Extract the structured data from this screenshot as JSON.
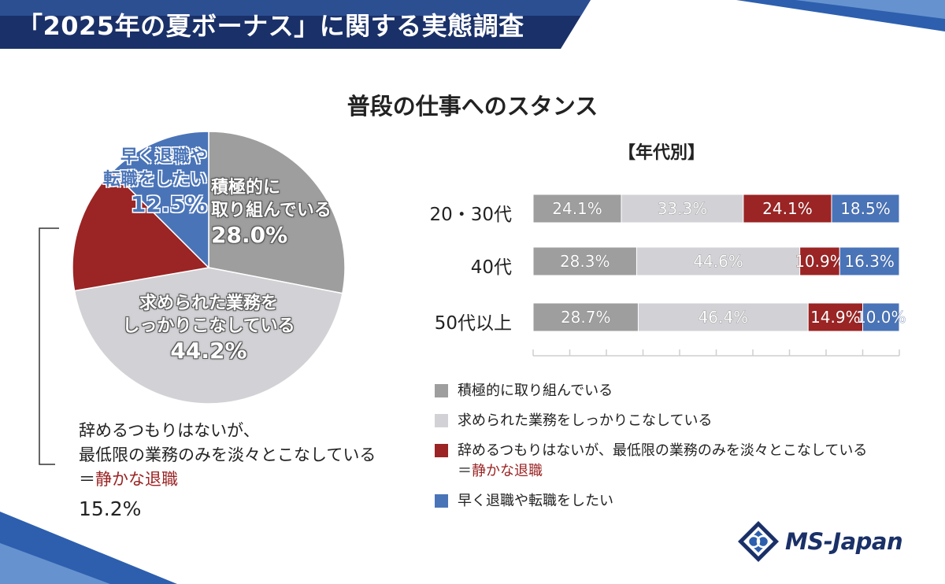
{
  "header": {
    "title": "「2025年の夏ボーナス」に関する実態調査"
  },
  "colors": {
    "active": "#9e9e9e",
    "normal": "#d2d2d6",
    "quiet": "#9b2424",
    "quit": "#4a74b8",
    "navy": "#1a3068"
  },
  "main_title": "普段の仕事へのスタンス",
  "pie": {
    "segments": [
      {
        "key": "active",
        "label_lines": [
          "積極的に",
          "取り組んでいる"
        ],
        "pct": "28.0%"
      },
      {
        "key": "normal",
        "label_lines": [
          "求められた業務を",
          "しっかりこなしている"
        ],
        "pct": "44.2%"
      },
      {
        "key": "quiet",
        "label_lines": [
          "辞めるつもりはないが、",
          "最低限の業務のみを淡々とこなしている"
        ],
        "label_suffix_prefix": "＝",
        "label_suffix": "静かな退職",
        "pct": "15.2%"
      },
      {
        "key": "quit",
        "label_lines": [
          "早く退職や",
          "転職をしたい"
        ],
        "pct": "12.5%"
      }
    ]
  },
  "chart_data": [
    {
      "type": "pie",
      "title": "普段の仕事へのスタンス",
      "categories": [
        "積極的に取り組んでいる",
        "求められた業務をしっかりこなしている",
        "辞めるつもりはないが、最低限の業務のみを淡々とこなしている＝静かな退職",
        "早く退職や転職をしたい"
      ],
      "values": [
        28.0,
        44.2,
        15.2,
        12.5
      ]
    },
    {
      "type": "bar",
      "stacked": true,
      "orientation": "horizontal",
      "title": "【年代別】",
      "categories": [
        "20・30代",
        "40代",
        "50代以上"
      ],
      "series": [
        {
          "name": "積極的に取り組んでいる",
          "values": [
            24.1,
            28.3,
            28.7
          ]
        },
        {
          "name": "求められた業務をしっかりこなしている",
          "values": [
            33.3,
            44.6,
            46.4
          ]
        },
        {
          "name": "辞めるつもりはないが、最低限の業務のみを淡々とこなしている＝静かな退職",
          "values": [
            24.1,
            10.9,
            14.9
          ]
        },
        {
          "name": "早く退職や転職をしたい",
          "values": [
            18.5,
            16.3,
            10.0
          ]
        }
      ],
      "xlim": [
        0,
        100
      ]
    }
  ],
  "legend": {
    "items": [
      {
        "key": "active",
        "text": "積極的に取り組んでいる"
      },
      {
        "key": "normal",
        "text": "求められた業務をしっかりこなしている"
      },
      {
        "key": "quiet",
        "text": "辞めるつもりはないが、最低限の業務のみを淡々とこなしている",
        "sub_prefix": "＝",
        "sub": "静かな退職"
      },
      {
        "key": "quit",
        "text": "早く退職や転職をしたい"
      }
    ]
  },
  "logo": {
    "text": "MS-Japan",
    "icon": "ms-japan-logo-icon"
  }
}
